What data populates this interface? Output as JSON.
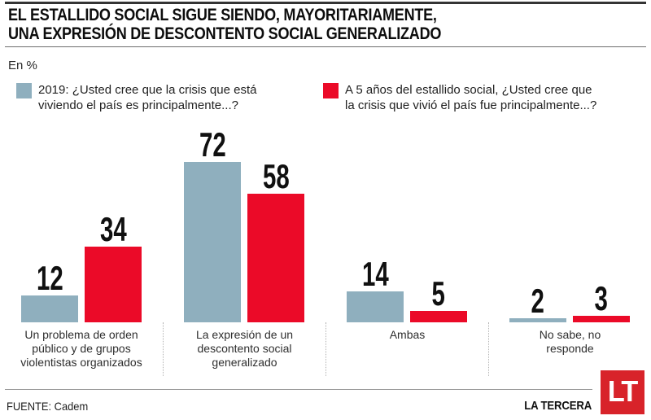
{
  "header": {
    "title": "EL ESTALLIDO SOCIAL SIGUE SIENDO, MAYORITARIAMENTE,\nUNA EXPRESIÓN DE DESCONTENTO SOCIAL GENERALIZADO",
    "unit_label": "En %"
  },
  "legend": [
    {
      "label": "2019: ¿Usted cree que la crisis que está\nviviendo el país es principalmente...?",
      "color": "#8FAFBE"
    },
    {
      "label": "A 5 años del estallido social, ¿Usted cree que\nla crisis que vivió el país fue principalmente...?",
      "color": "#EB0A28"
    }
  ],
  "chart_data": {
    "type": "bar",
    "title": "EL ESTALLIDO SOCIAL SIGUE SIENDO, MAYORITARIAMENTE, UNA EXPRESIÓN DE DESCONTENTO SOCIAL GENERALIZADO",
    "unit": "%",
    "categories": [
      "Un problema de orden público y de grupos violentistas organizados",
      "La expresión de un descontento social generalizado",
      "Ambas",
      "No sabe, no responde"
    ],
    "categories_display": [
      "Un problema de orden\npúblico y de grupos\nviolentistas organizados",
      "La expresión de un\ndescontento social\ngeneralizado",
      "Ambas",
      "No sabe, no\nresponde"
    ],
    "series": [
      {
        "name": "2019: ¿Usted cree que la crisis que está viviendo el país es principalmente...?",
        "color": "#8FAFBE",
        "values": [
          12,
          72,
          14,
          2
        ]
      },
      {
        "name": "A 5 años del estallido social, ¿Usted cree que la crisis que vivió el país fue principalmente...?",
        "color": "#EB0A28",
        "values": [
          34,
          58,
          5,
          3
        ]
      }
    ],
    "value_labels_shown": true,
    "ylim": [
      0,
      80
    ],
    "grid": false,
    "legend_position": "top"
  },
  "footer": {
    "source": "FUENTE: Cadem",
    "credit": "LA TERCERA",
    "logo_text": "LT",
    "logo_color": "#D8232A"
  }
}
